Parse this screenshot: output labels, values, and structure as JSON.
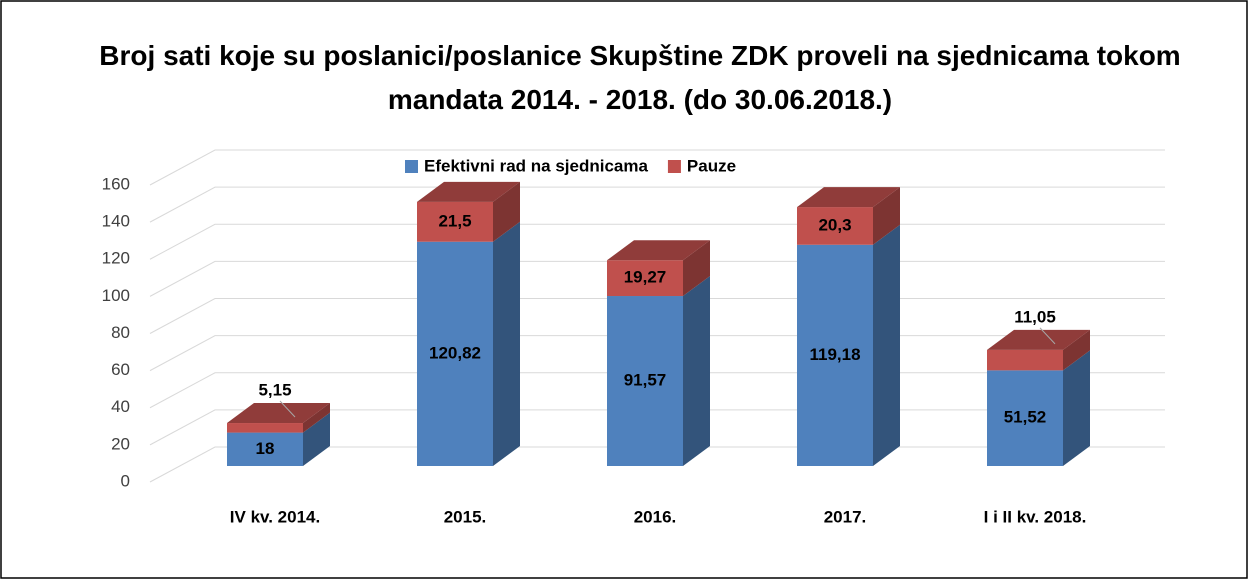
{
  "chart_data": {
    "type": "bar3d_stacked",
    "title": "Broj sati koje su poslanici/poslanice Skupštine ZDK proveli na sjednicama tokom mandata 2014. - 2018. (do 30.06.2018.)",
    "categories": [
      "IV kv. 2014.",
      "2015.",
      "2016.",
      "2017.",
      "I i II kv. 2018."
    ],
    "series": [
      {
        "name": "Efektivni rad na sjednicama",
        "color": "#4f81bd",
        "values": [
          18,
          120.82,
          91.57,
          119.18,
          51.52
        ],
        "value_labels": [
          "18",
          "120,82",
          "91,57",
          "119,18",
          "51,52"
        ]
      },
      {
        "name": "Pauze",
        "color": "#c0504d",
        "values": [
          5.15,
          21.5,
          19.27,
          20.3,
          11.05
        ],
        "value_labels": [
          "5,15",
          "21,5",
          "19,27",
          "20,3",
          "11,05"
        ]
      }
    ],
    "ylim": [
      0,
      160
    ],
    "yticks": [
      0,
      20,
      40,
      60,
      80,
      100,
      120,
      140,
      160
    ],
    "grid": true,
    "legend": "top"
  }
}
